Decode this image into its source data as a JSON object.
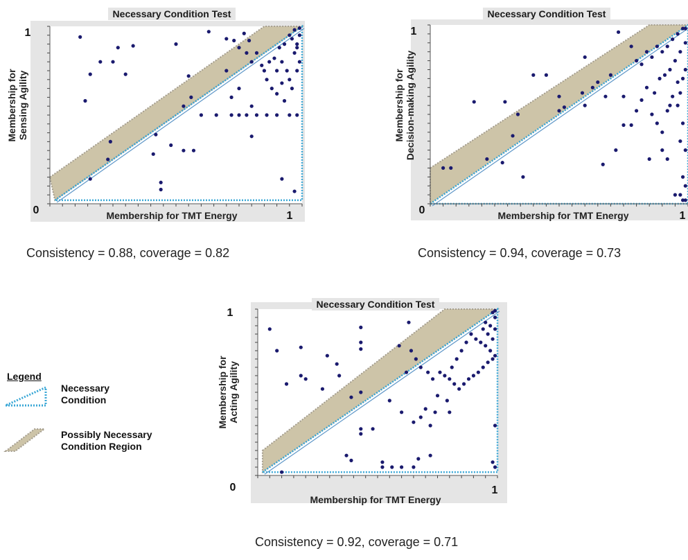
{
  "chart_data": [
    {
      "type": "scatter",
      "title": "Necessary Condition Test",
      "xlabel": "Membership for TMT Energy",
      "ylabel_lines": [
        "Membership for",
        "Sensing  Agility"
      ],
      "xlim": [
        0,
        1
      ],
      "ylim": [
        0,
        1
      ],
      "tick_min": "0",
      "tick_max_y": "1",
      "tick_max_x": "1",
      "consistency": "Consistency = 0.88, coverage = 0.82",
      "ceiling_possible": [
        [
          0,
          0.15
        ],
        [
          0.85,
          1.0
        ],
        [
          1.0,
          1.0
        ],
        [
          0.02,
          0.02
        ]
      ],
      "ceiling_necessary": [
        [
          0.02,
          0.02
        ],
        [
          1.0,
          1.0
        ],
        [
          1.0,
          0.02
        ]
      ],
      "points": [
        [
          0.12,
          0.94
        ],
        [
          0.27,
          0.88
        ],
        [
          0.33,
          0.89
        ],
        [
          0.5,
          0.9
        ],
        [
          0.63,
          0.97
        ],
        [
          0.3,
          0.73
        ],
        [
          0.2,
          0.8
        ],
        [
          0.25,
          0.8
        ],
        [
          0.16,
          0.73
        ],
        [
          0.14,
          0.58
        ],
        [
          0.24,
          0.35
        ],
        [
          0.23,
          0.25
        ],
        [
          0.16,
          0.14
        ],
        [
          0.41,
          0.28
        ],
        [
          0.42,
          0.39
        ],
        [
          0.48,
          0.33
        ],
        [
          0.53,
          0.3
        ],
        [
          0.57,
          0.3
        ],
        [
          0.44,
          0.12
        ],
        [
          0.44,
          0.08
        ],
        [
          0.55,
          0.72
        ],
        [
          0.53,
          0.55
        ],
        [
          0.6,
          0.5
        ],
        [
          0.56,
          0.6
        ],
        [
          0.66,
          0.5
        ],
        [
          0.72,
          0.5
        ],
        [
          0.75,
          0.5
        ],
        [
          0.78,
          0.5
        ],
        [
          0.82,
          0.5
        ],
        [
          0.86,
          0.5
        ],
        [
          0.9,
          0.5
        ],
        [
          0.95,
          0.5
        ],
        [
          0.98,
          0.5
        ],
        [
          0.72,
          0.6
        ],
        [
          0.75,
          0.65
        ],
        [
          0.7,
          0.75
        ],
        [
          0.8,
          0.55
        ],
        [
          0.8,
          0.38
        ],
        [
          0.73,
          0.92
        ],
        [
          0.75,
          0.88
        ],
        [
          0.78,
          0.85
        ],
        [
          0.8,
          0.8
        ],
        [
          0.84,
          0.78
        ],
        [
          0.86,
          0.7
        ],
        [
          0.88,
          0.65
        ],
        [
          0.9,
          0.75
        ],
        [
          0.92,
          0.8
        ],
        [
          0.94,
          0.75
        ],
        [
          0.95,
          0.7
        ],
        [
          0.96,
          0.65
        ],
        [
          0.97,
          0.85
        ],
        [
          0.98,
          0.9
        ],
        [
          0.99,
          0.95
        ],
        [
          0.97,
          0.98
        ],
        [
          0.95,
          0.95
        ],
        [
          0.93,
          0.9
        ],
        [
          0.91,
          0.88
        ],
        [
          0.89,
          0.82
        ],
        [
          0.87,
          0.8
        ],
        [
          0.85,
          0.75
        ],
        [
          0.82,
          0.85
        ],
        [
          0.79,
          0.92
        ],
        [
          0.77,
          0.96
        ],
        [
          0.7,
          0.93
        ],
        [
          0.99,
          0.8
        ],
        [
          0.98,
          0.75
        ],
        [
          0.9,
          0.62
        ],
        [
          0.93,
          0.58
        ],
        [
          0.92,
          0.14
        ],
        [
          0.97,
          0.07
        ],
        [
          0.99,
          0.99
        ],
        [
          0.96,
          0.93
        ],
        [
          0.98,
          0.88
        ],
        [
          0.92,
          0.68
        ]
      ]
    },
    {
      "type": "scatter",
      "title": "Necessary Condition Test",
      "xlabel": "Membership for TMT Energy",
      "ylabel_lines": [
        "Membership for",
        "Decision-making  Agility"
      ],
      "xlim": [
        0,
        1
      ],
      "ylim": [
        0,
        1
      ],
      "tick_min": "0",
      "tick_max_y": "1",
      "tick_max_x": "1",
      "consistency": "Consistency = 0.94, coverage = 0.73",
      "ceiling_possible": [
        [
          0,
          0.2
        ],
        [
          0.85,
          1.0
        ],
        [
          1.0,
          1.0
        ],
        [
          0,
          0
        ]
      ],
      "ceiling_necessary": [
        [
          0,
          0
        ],
        [
          1.0,
          1.0
        ],
        [
          1.0,
          0
        ]
      ],
      "points": [
        [
          0.05,
          0.2
        ],
        [
          0.08,
          0.2
        ],
        [
          0.17,
          0.57
        ],
        [
          0.29,
          0.57
        ],
        [
          0.34,
          0.5
        ],
        [
          0.22,
          0.25
        ],
        [
          0.28,
          0.23
        ],
        [
          0.32,
          0.38
        ],
        [
          0.36,
          0.15
        ],
        [
          0.4,
          0.72
        ],
        [
          0.45,
          0.72
        ],
        [
          0.5,
          0.6
        ],
        [
          0.5,
          0.52
        ],
        [
          0.52,
          0.54
        ],
        [
          0.59,
          0.62
        ],
        [
          0.63,
          0.65
        ],
        [
          0.65,
          0.68
        ],
        [
          0.68,
          0.6
        ],
        [
          0.7,
          0.72
        ],
        [
          0.67,
          0.22
        ],
        [
          0.72,
          0.3
        ],
        [
          0.75,
          0.44
        ],
        [
          0.78,
          0.44
        ],
        [
          0.8,
          0.52
        ],
        [
          0.82,
          0.58
        ],
        [
          0.84,
          0.65
        ],
        [
          0.86,
          0.5
        ],
        [
          0.88,
          0.45
        ],
        [
          0.9,
          0.4
        ],
        [
          0.92,
          0.52
        ],
        [
          0.94,
          0.6
        ],
        [
          0.96,
          0.55
        ],
        [
          0.98,
          0.45
        ],
        [
          0.9,
          0.3
        ],
        [
          0.92,
          0.25
        ],
        [
          0.85,
          0.25
        ],
        [
          0.8,
          0.8
        ],
        [
          0.82,
          0.78
        ],
        [
          0.84,
          0.85
        ],
        [
          0.86,
          0.82
        ],
        [
          0.88,
          0.88
        ],
        [
          0.9,
          0.85
        ],
        [
          0.92,
          0.88
        ],
        [
          0.94,
          0.92
        ],
        [
          0.96,
          0.95
        ],
        [
          0.98,
          0.98
        ],
        [
          0.99,
          0.9
        ],
        [
          0.97,
          0.85
        ],
        [
          0.95,
          0.8
        ],
        [
          0.93,
          0.75
        ],
        [
          0.91,
          0.72
        ],
        [
          0.89,
          0.7
        ],
        [
          0.99,
          0.75
        ],
        [
          0.98,
          0.7
        ],
        [
          0.96,
          0.68
        ],
        [
          0.97,
          0.35
        ],
        [
          0.99,
          0.3
        ],
        [
          0.98,
          0.15
        ],
        [
          0.99,
          0.1
        ],
        [
          0.97,
          0.05
        ],
        [
          0.95,
          0.05
        ],
        [
          0.99,
          0.02
        ],
        [
          0.98,
          0.02
        ],
        [
          0.6,
          0.82
        ],
        [
          0.73,
          0.96
        ],
        [
          0.78,
          0.88
        ],
        [
          0.87,
          0.62
        ],
        [
          0.93,
          0.55
        ],
        [
          0.97,
          0.62
        ],
        [
          0.99,
          0.98
        ],
        [
          0.6,
          0.55
        ],
        [
          0.75,
          0.6
        ]
      ]
    },
    {
      "type": "scatter",
      "title": "Necessary Condition Test",
      "xlabel": "Membership for TMT Energy",
      "ylabel_lines": [
        "Membership for",
        "Acting Agility"
      ],
      "xlim": [
        0,
        1
      ],
      "ylim": [
        0,
        1
      ],
      "tick_min": "0",
      "tick_max_y": "1",
      "tick_max_x": "1",
      "consistency": "Consistency = 0.92, coverage = 0.71",
      "ceiling_possible": [
        [
          0.02,
          0.15
        ],
        [
          0.78,
          1.0
        ],
        [
          1.0,
          1.0
        ],
        [
          0.02,
          0.02
        ]
      ],
      "ceiling_necessary": [
        [
          0.02,
          0.02
        ],
        [
          1.0,
          1.0
        ],
        [
          1.0,
          0.02
        ]
      ],
      "points": [
        [
          0.05,
          0.88
        ],
        [
          0.08,
          0.75
        ],
        [
          0.12,
          0.55
        ],
        [
          0.18,
          0.77
        ],
        [
          0.18,
          0.6
        ],
        [
          0.2,
          0.58
        ],
        [
          0.27,
          0.52
        ],
        [
          0.29,
          0.72
        ],
        [
          0.33,
          0.67
        ],
        [
          0.34,
          0.6
        ],
        [
          0.43,
          0.89
        ],
        [
          0.43,
          0.8
        ],
        [
          0.43,
          0.76
        ],
        [
          0.43,
          0.5
        ],
        [
          0.39,
          0.47
        ],
        [
          0.63,
          0.92
        ],
        [
          0.59,
          0.78
        ],
        [
          0.43,
          0.28
        ],
        [
          0.43,
          0.25
        ],
        [
          0.48,
          0.28
        ],
        [
          0.37,
          0.12
        ],
        [
          0.39,
          0.09
        ],
        [
          0.52,
          0.08
        ],
        [
          0.52,
          0.05
        ],
        [
          0.56,
          0.05
        ],
        [
          0.6,
          0.05
        ],
        [
          0.65,
          0.05
        ],
        [
          0.6,
          0.38
        ],
        [
          0.65,
          0.32
        ],
        [
          0.68,
          0.35
        ],
        [
          0.7,
          0.4
        ],
        [
          0.72,
          0.3
        ],
        [
          0.74,
          0.38
        ],
        [
          0.75,
          0.48
        ],
        [
          0.73,
          0.58
        ],
        [
          0.71,
          0.62
        ],
        [
          0.68,
          0.65
        ],
        [
          0.66,
          0.7
        ],
        [
          0.64,
          0.75
        ],
        [
          0.62,
          0.62
        ],
        [
          0.76,
          0.62
        ],
        [
          0.78,
          0.6
        ],
        [
          0.8,
          0.58
        ],
        [
          0.82,
          0.55
        ],
        [
          0.84,
          0.52
        ],
        [
          0.86,
          0.55
        ],
        [
          0.88,
          0.58
        ],
        [
          0.9,
          0.6
        ],
        [
          0.92,
          0.62
        ],
        [
          0.94,
          0.65
        ],
        [
          0.96,
          0.68
        ],
        [
          0.98,
          0.7
        ],
        [
          0.99,
          0.72
        ],
        [
          0.97,
          0.75
        ],
        [
          0.95,
          0.78
        ],
        [
          0.93,
          0.8
        ],
        [
          0.91,
          0.82
        ],
        [
          0.89,
          0.85
        ],
        [
          0.87,
          0.8
        ],
        [
          0.85,
          0.75
        ],
        [
          0.83,
          0.7
        ],
        [
          0.81,
          0.65
        ],
        [
          0.79,
          0.45
        ],
        [
          0.8,
          0.38
        ],
        [
          0.98,
          0.82
        ],
        [
          0.99,
          0.88
        ],
        [
          0.99,
          0.95
        ],
        [
          0.97,
          0.9
        ],
        [
          0.95,
          0.92
        ],
        [
          0.99,
          0.99
        ],
        [
          0.98,
          0.98
        ],
        [
          0.96,
          0.85
        ],
        [
          0.94,
          0.88
        ],
        [
          0.99,
          0.3
        ],
        [
          0.98,
          0.08
        ],
        [
          0.99,
          0.05
        ],
        [
          0.1,
          0.02
        ],
        [
          0.55,
          0.45
        ],
        [
          0.72,
          0.12
        ],
        [
          0.67,
          0.1
        ]
      ]
    }
  ],
  "legend": {
    "title": "Legend",
    "necessary_label_lines": [
      "Necessary",
      "Condition"
    ],
    "possible_label_lines": [
      "Possibly Necessary",
      "Condition Region"
    ]
  },
  "colors": {
    "frame": "#e5e5e5",
    "region_fill": "#cdc4a8",
    "region_stroke": "#a49d8e",
    "necessary_line": "#3aa7d6",
    "diagonal": "#5f97c8",
    "point": "#1a1a6e"
  }
}
